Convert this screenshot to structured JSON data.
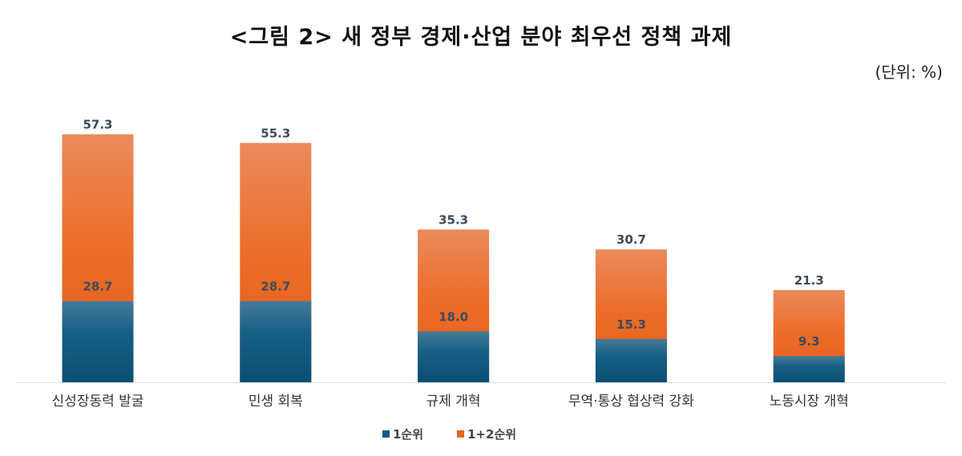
{
  "title": "<그림 2> 새 정부 경제·산업 분야 최우선 정책 과제",
  "unit": "(단위: %)",
  "chart_data": {
    "type": "bar",
    "title": "<그림 2> 새 정부 경제·산업 분야 최우선 정책 과제",
    "unit": "(단위: %)",
    "categories": [
      "신성장동력 발굴",
      "민생 회복",
      "규제 개혁",
      "무역·통상 협상력 강화",
      "노동시장 개혁"
    ],
    "series": [
      {
        "name": "1순위",
        "values": [
          28.7,
          28.7,
          18.0,
          15.3,
          9.3
        ],
        "color": "#0f5a80"
      },
      {
        "name": "1+2순위",
        "values": [
          57.3,
          55.3,
          35.3,
          30.7,
          21.3
        ],
        "color": "#e8651f"
      }
    ],
    "legend": "bottom-center",
    "grid": false
  }
}
